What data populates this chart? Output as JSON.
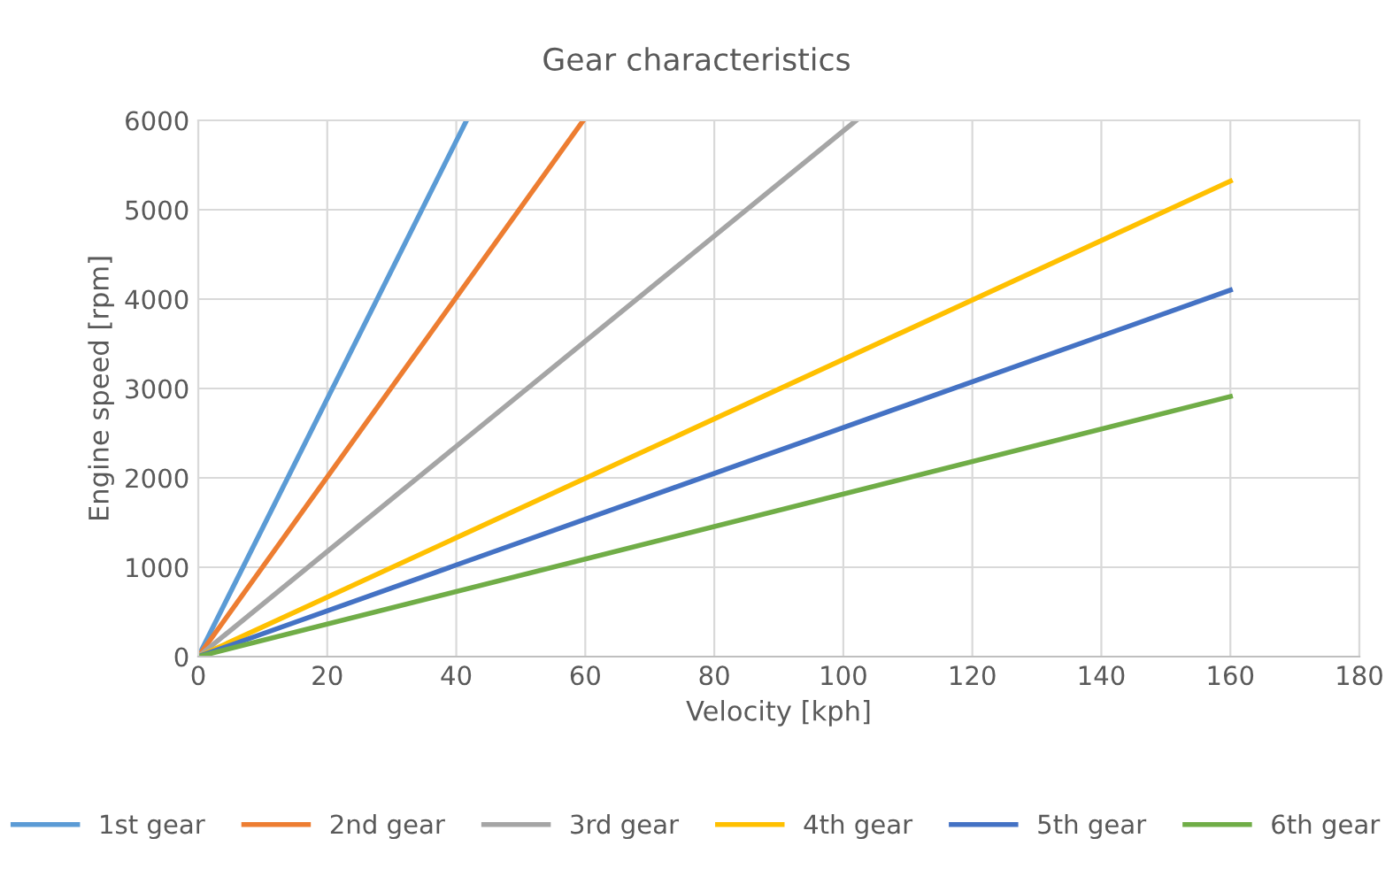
{
  "chart_data": {
    "type": "line",
    "title": "Gear characteristics",
    "xlabel": "Velocity [kph]",
    "ylabel": "Engine speed [rpm]",
    "xlim": [
      0,
      180
    ],
    "xticks": [
      0,
      20,
      40,
      60,
      80,
      100,
      120,
      140,
      160,
      180
    ],
    "ylim": [
      0,
      6000
    ],
    "yticks": [
      0,
      1000,
      2000,
      3000,
      4000,
      5000,
      6000
    ],
    "grid": true,
    "legend": "bottom",
    "marker": "none",
    "line_style": "solid",
    "series": [
      {
        "name": "1st gear",
        "color": "#5b9bd5",
        "x": [
          0,
          41.6
        ],
        "values": [
          0,
          6000
        ]
      },
      {
        "name": "2nd gear",
        "color": "#ed7d31",
        "x": [
          0,
          59.7
        ],
        "values": [
          0,
          6000
        ]
      },
      {
        "name": "3rd gear",
        "color": "#a5a5a5",
        "x": [
          0,
          102
        ],
        "values": [
          0,
          6000
        ]
      },
      {
        "name": "4th gear",
        "color": "#ffc000",
        "x": [
          0,
          160
        ],
        "values": [
          0,
          5320
        ]
      },
      {
        "name": "5th gear",
        "color": "#4472c4",
        "x": [
          0,
          160
        ],
        "values": [
          0,
          4100
        ]
      },
      {
        "name": "6th gear",
        "color": "#70ad47",
        "x": [
          0,
          160
        ],
        "values": [
          0,
          2910
        ]
      }
    ]
  }
}
